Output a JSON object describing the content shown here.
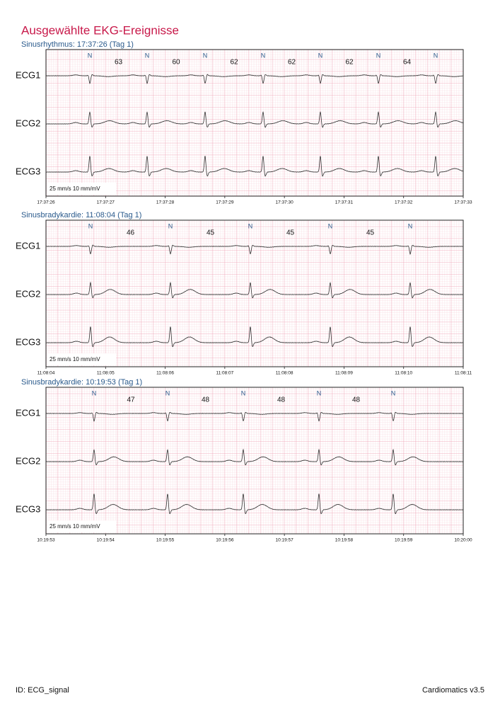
{
  "title": "Ausgewählte EKG-Ereignisse",
  "strips": [
    {
      "header": "Sinusrhythmus: 17:37:26 (Tag 1)",
      "leads": [
        "ECG1",
        "ECG2",
        "ECG3"
      ],
      "beats": [
        "N",
        "N",
        "N",
        "N",
        "N",
        "N",
        "N"
      ],
      "rates": [
        63,
        60,
        62,
        62,
        62,
        64
      ],
      "scale": "25 mm/s 10 mm/mV",
      "times": [
        "17:37:26",
        "17:37:27",
        "17:37:28",
        "17:37:29",
        "17:37:30",
        "17:37:31",
        "17:37:32",
        "17:37:33"
      ]
    },
    {
      "header": "Sinusbradykardie: 11:08:04 (Tag 1)",
      "leads": [
        "ECG1",
        "ECG2",
        "ECG3"
      ],
      "beats": [
        "N",
        "N",
        "N",
        "N",
        "N"
      ],
      "rates": [
        46,
        45,
        45,
        45
      ],
      "scale": "25 mm/s 10 mm/mV",
      "times": [
        "11:08:04",
        "11:08:05",
        "11:08:06",
        "11:08:07",
        "11:08:08",
        "11:08:09",
        "11:08:10",
        "11:08:11"
      ]
    },
    {
      "header": "Sinusbradykardie: 10:19:53 (Tag 1)",
      "leads": [
        "ECG1",
        "ECG2",
        "ECG3"
      ],
      "beats": [
        "N",
        "N",
        "N",
        "N",
        "N"
      ],
      "rates": [
        47,
        48,
        48,
        48
      ],
      "scale": "25 mm/s 10 mm/mV",
      "times": [
        "10:19:53",
        "10:19:54",
        "10:19:55",
        "10:19:56",
        "10:19:57",
        "10:19:58",
        "10:19:59",
        "10:20:00"
      ]
    }
  ],
  "footer": {
    "id": "ID: ECG_signal",
    "version": "Cardiomatics v3.5"
  }
}
